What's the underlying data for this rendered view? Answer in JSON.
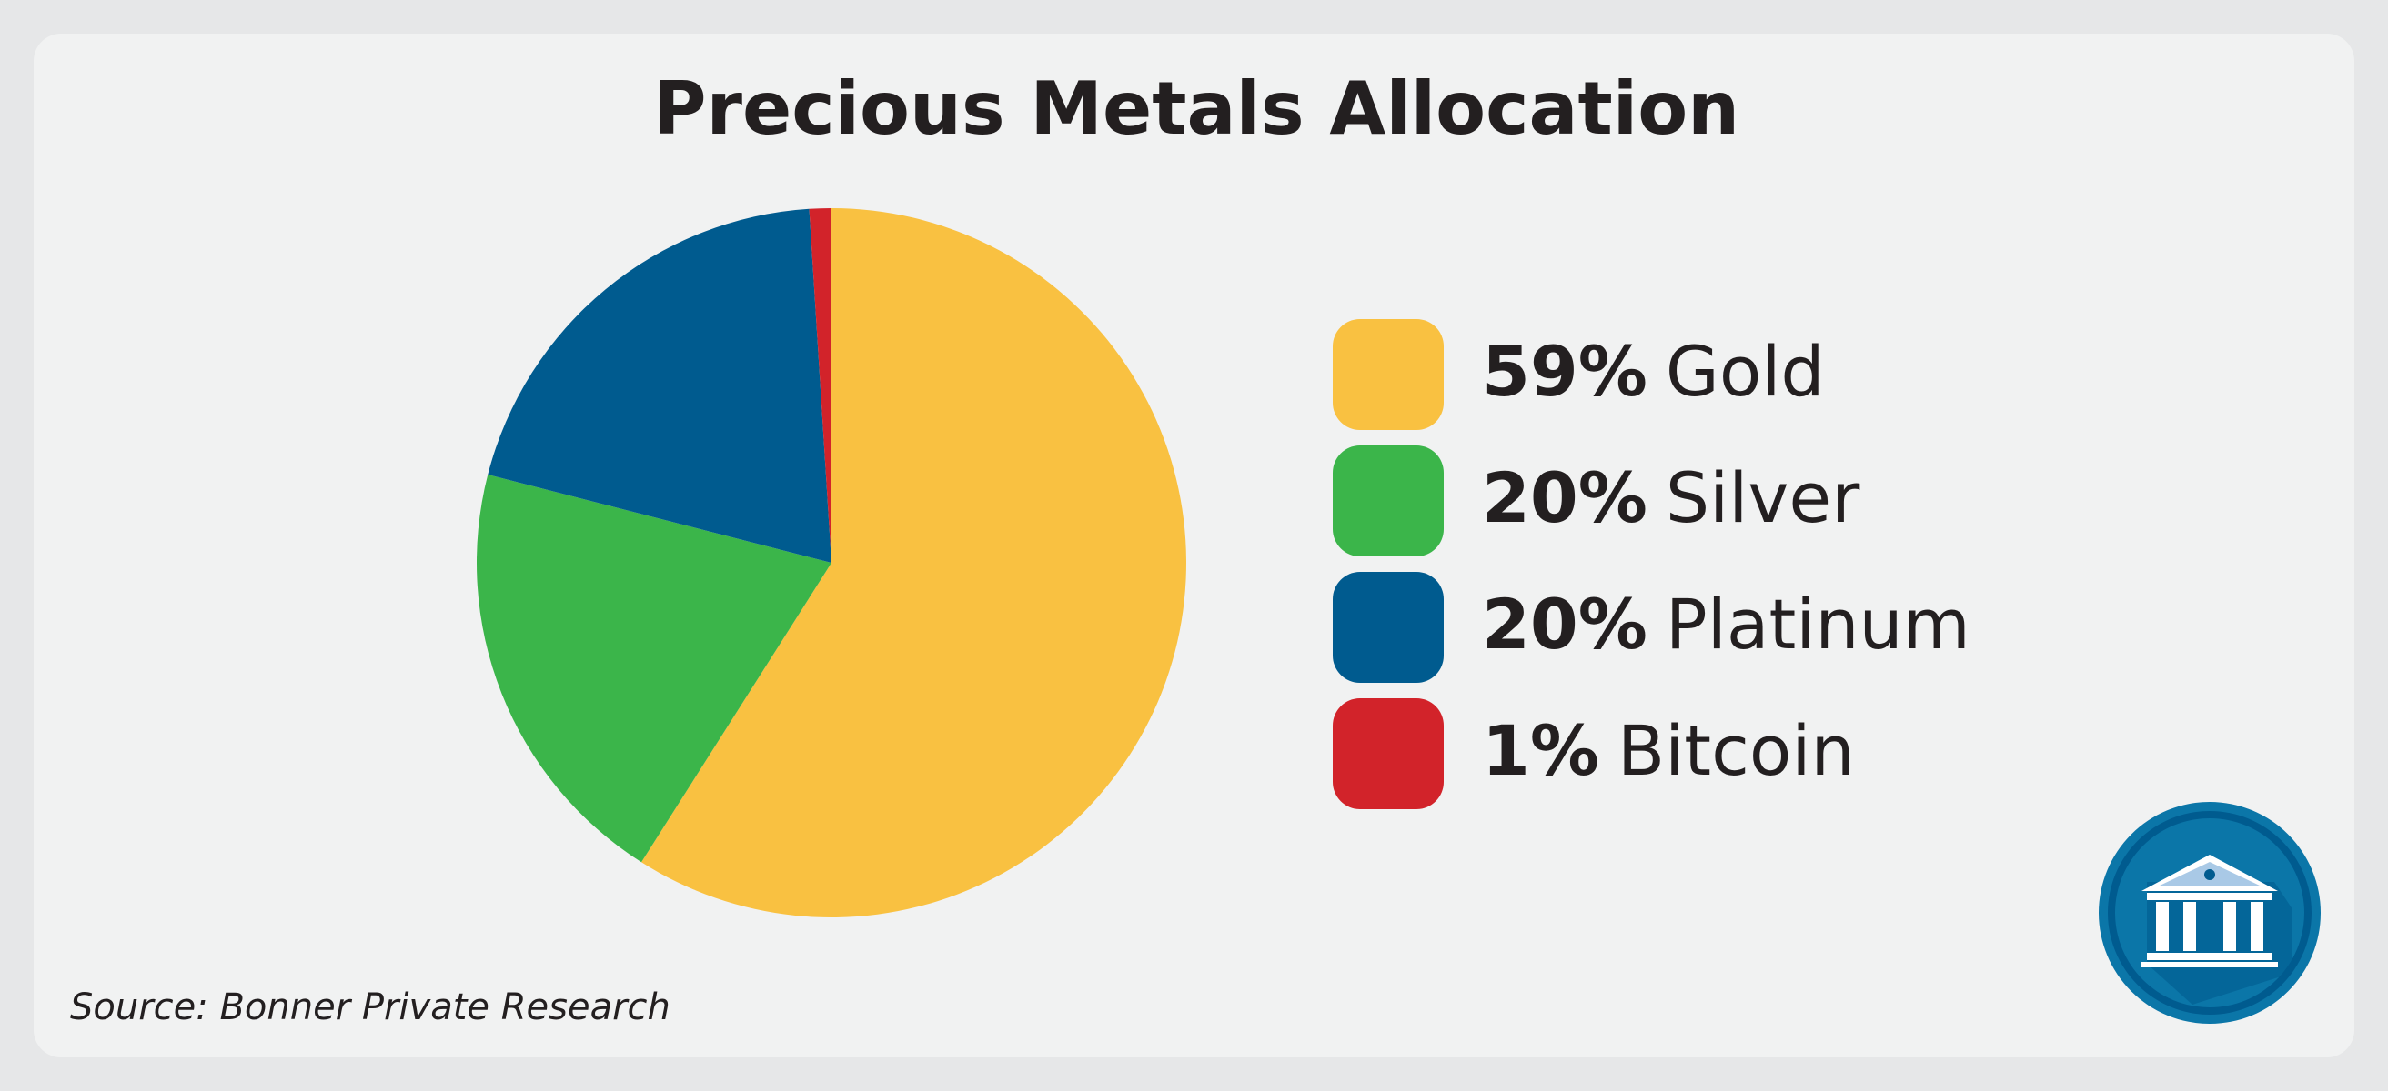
{
  "chart_data": {
    "type": "pie",
    "title": "Precious Metals Allocation",
    "categories": [
      "Gold",
      "Silver",
      "Platinum",
      "Bitcoin"
    ],
    "values": [
      59,
      20,
      20,
      1
    ],
    "value_labels": [
      "59%",
      "20%",
      "20%",
      "1%"
    ],
    "colors": [
      "#f9c141",
      "#3bb54a",
      "#005b8f",
      "#d2232a"
    ],
    "source": "Source: Bonner Private Research"
  }
}
